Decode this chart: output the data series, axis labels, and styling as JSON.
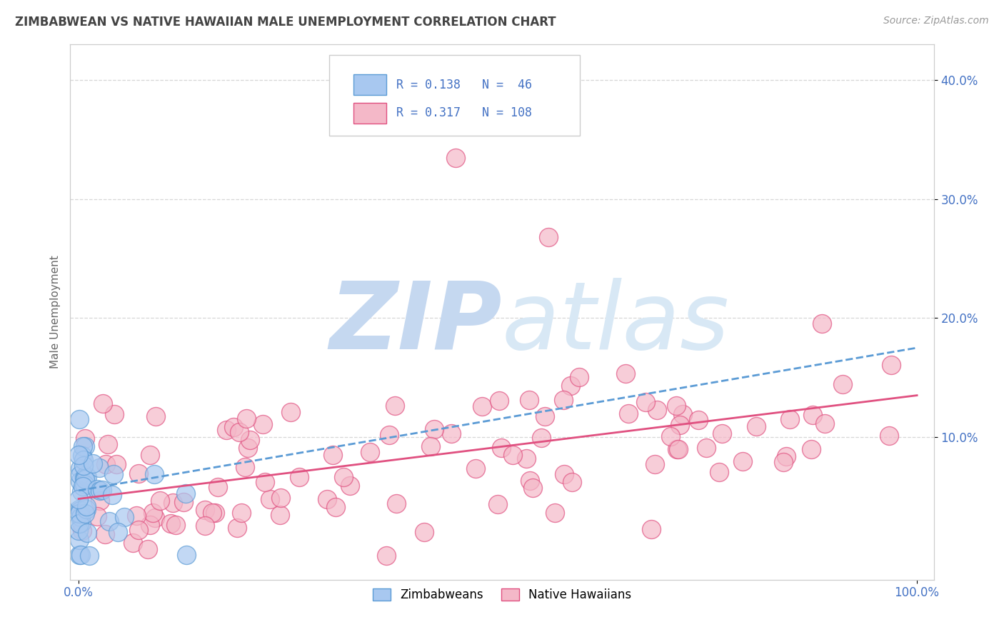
{
  "title": "ZIMBABWEAN VS NATIVE HAWAIIAN MALE UNEMPLOYMENT CORRELATION CHART",
  "source_text": "Source: ZipAtlas.com",
  "ylabel": "Male Unemployment",
  "xlim": [
    -0.01,
    1.02
  ],
  "ylim": [
    -0.02,
    0.43
  ],
  "xtick_vals": [
    0.0,
    1.0
  ],
  "xtick_labels": [
    "0.0%",
    "100.0%"
  ],
  "ytick_vals": [
    0.1,
    0.2,
    0.3,
    0.4
  ],
  "ytick_labels": [
    "10.0%",
    "20.0%",
    "30.0%",
    "40.0%"
  ],
  "legend_line1": "R = 0.138   N =  46",
  "legend_line2": "R = 0.317   N = 108",
  "color_zim_fill": "#a8c8f0",
  "color_zim_edge": "#5b9bd5",
  "color_nh_fill": "#f4b8c8",
  "color_nh_edge": "#e05080",
  "color_trend_zim": "#5b9bd5",
  "color_trend_nh": "#e05080",
  "color_axis_text": "#4472c4",
  "color_title": "#444444",
  "color_source": "#999999",
  "color_grid": "#cccccc",
  "color_ylabel": "#666666",
  "color_legend_box_fill": "#ffffff",
  "color_legend_box_edge": "#cccccc",
  "color_legend_text": "#4472c4",
  "watermark_zip_color": "#c5d8f0",
  "watermark_atlas_color": "#d8e8f5",
  "background": "#ffffff",
  "zim_trend_x0": 0.0,
  "zim_trend_x1": 1.0,
  "zim_trend_y0": 0.055,
  "zim_trend_y1": 0.175,
  "nh_trend_x0": 0.0,
  "nh_trend_x1": 1.0,
  "nh_trend_y0": 0.048,
  "nh_trend_y1": 0.135
}
